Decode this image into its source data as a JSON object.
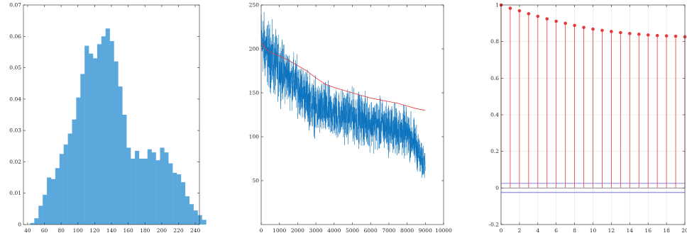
{
  "chart_data": [
    {
      "type": "bar",
      "title": "",
      "xlabel": "",
      "ylabel": "",
      "xlim": [
        35,
        245
      ],
      "ylim": [
        0,
        0.07
      ],
      "xticks": [
        40,
        60,
        80,
        100,
        120,
        140,
        160,
        180,
        200,
        220,
        240
      ],
      "yticks": [
        0,
        0.01,
        0.02,
        0.03,
        0.04,
        0.05,
        0.06,
        0.07
      ],
      "ytick_labels": [
        "0",
        "0.01",
        "0.02",
        "0.03",
        "0.04",
        "0.05",
        "0.06",
        "0.07"
      ],
      "bin_width": 5,
      "bin_edges_start": 43,
      "values": [
        0.0005,
        0.002,
        0.006,
        0.0095,
        0.015,
        0.0145,
        0.018,
        0.0225,
        0.0255,
        0.029,
        0.0335,
        0.0405,
        0.048,
        0.057,
        0.0545,
        0.053,
        0.0575,
        0.06,
        0.0625,
        0.0585,
        0.052,
        0.044,
        0.035,
        0.0245,
        0.021,
        0.0235,
        0.021,
        0.021,
        0.024,
        0.023,
        0.0205,
        0.0245,
        0.023,
        0.0195,
        0.0165,
        0.016,
        0.0135,
        0.009,
        0.0065,
        0.0045,
        0.003,
        0.0015
      ],
      "color": "#5ba8dc",
      "grid": false
    },
    {
      "type": "line",
      "title": "",
      "xlabel": "",
      "ylabel": "",
      "xlim": [
        0,
        10000
      ],
      "ylim": [
        0,
        250
      ],
      "xticks": [
        0,
        1000,
        2000,
        3000,
        4000,
        5000,
        6000,
        7000,
        8000,
        9000,
        10000
      ],
      "yticks": [
        50,
        100,
        150,
        200,
        250
      ],
      "grid": false,
      "series": [
        {
          "style": "noisy-signal",
          "color": "#0a72bd",
          "n_samples": 9000,
          "x": [
            0,
            100,
            300,
            500,
            700,
            1000,
            1500,
            2000,
            2500,
            3000,
            3500,
            4000,
            4500,
            5000,
            5500,
            6000,
            6500,
            7000,
            7500,
            8000,
            8300,
            8600,
            8800,
            9000
          ],
          "y": [
            212,
            205,
            197,
            190,
            183,
            178,
            168,
            158,
            145,
            132,
            130,
            126,
            125,
            123,
            120,
            116,
            113,
            110,
            107,
            103,
            97,
            85,
            70,
            78
          ],
          "noise_amplitude": [
            20,
            22,
            22,
            22,
            22,
            20,
            18,
            18,
            18,
            18,
            18,
            17,
            17,
            17,
            17,
            17,
            17,
            17,
            17,
            16,
            16,
            14,
            12,
            12
          ]
        },
        {
          "style": "smooth",
          "color": "#e83a3a",
          "x": [
            0,
            300,
            600,
            1000,
            1500,
            2000,
            2500,
            3000,
            3500,
            4000,
            4500,
            5000,
            5500,
            6000,
            6500,
            7000,
            7500,
            8000,
            8500,
            9000
          ],
          "y": [
            207,
            199,
            195,
            192,
            187,
            181,
            175,
            167,
            160,
            156,
            153,
            150,
            147,
            144,
            142,
            140,
            138,
            135,
            132,
            130
          ]
        }
      ]
    },
    {
      "type": "stem",
      "title": "",
      "xlabel": "",
      "ylabel": "",
      "xlim": [
        0,
        20
      ],
      "ylim": [
        -0.2,
        1
      ],
      "xticks": [
        0,
        2,
        4,
        6,
        8,
        10,
        12,
        14,
        16,
        18,
        20
      ],
      "yticks": [
        -0.2,
        0,
        0.2,
        0.4,
        0.6,
        0.8,
        1
      ],
      "ytick_labels": [
        "-0.2",
        "0",
        "0.2",
        "0.4",
        "0.6",
        "0.8",
        "1"
      ],
      "grid": true,
      "x": [
        0,
        1,
        2,
        3,
        4,
        5,
        6,
        7,
        8,
        9,
        10,
        11,
        12,
        13,
        14,
        15,
        16,
        17,
        18,
        19,
        20
      ],
      "y": [
        1,
        0.982,
        0.968,
        0.952,
        0.938,
        0.924,
        0.911,
        0.9,
        0.888,
        0.877,
        0.868,
        0.861,
        0.855,
        0.849,
        0.844,
        0.84,
        0.836,
        0.833,
        0.831,
        0.829,
        0.826
      ],
      "stem_color": "#e83a3a",
      "bounds": [
        0.025,
        -0.025
      ],
      "bounds_color": "#5b5bd6",
      "grid_color": "#dddddd"
    }
  ]
}
